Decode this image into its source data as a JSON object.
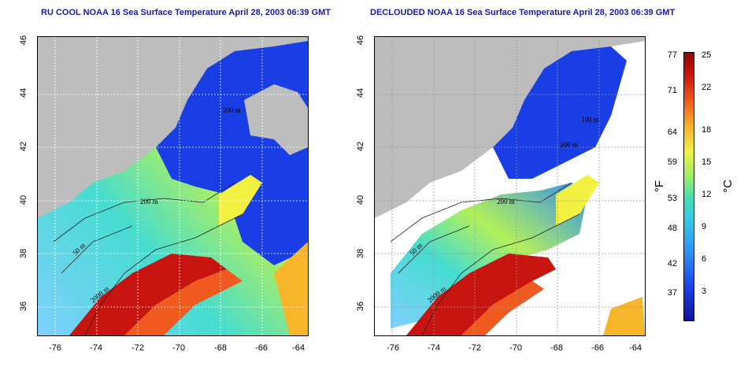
{
  "titles": {
    "left": "RU COOL NOAA 16 Sea Surface Temperature April 28, 2003 06:39 GMT",
    "right": "DECLOUDED NOAA 16 Sea Surface Temperature April 28, 2003 06:39 GMT"
  },
  "map": {
    "y_ticks": [
      "46",
      "44",
      "42",
      "40",
      "38",
      "36"
    ],
    "x_ticks": [
      "-76",
      "-74",
      "-72",
      "-70",
      "-68",
      "-66",
      "-64"
    ],
    "contour_labels": {
      "left": [
        "200 m",
        "200 m",
        "50 m",
        "2000 m"
      ],
      "right": [
        "100 m",
        "200 m",
        "200 m",
        "50 m",
        "2000 m"
      ]
    }
  },
  "colorbar": {
    "fahrenheit_labels": [
      "77",
      "71",
      "64",
      "59",
      "53",
      "48",
      "42",
      "37"
    ],
    "celsius_labels": [
      "25",
      "22",
      "18",
      "15",
      "12",
      "9",
      "6",
      "3"
    ],
    "fahrenheit_unit": "°F",
    "celsius_unit": "°C"
  },
  "colors": {
    "land": "#bdbdbd",
    "cloud": "#ffffff",
    "cold": "#1a3ee6",
    "warm": "#c8140e",
    "title": "#1a1aa8"
  }
}
